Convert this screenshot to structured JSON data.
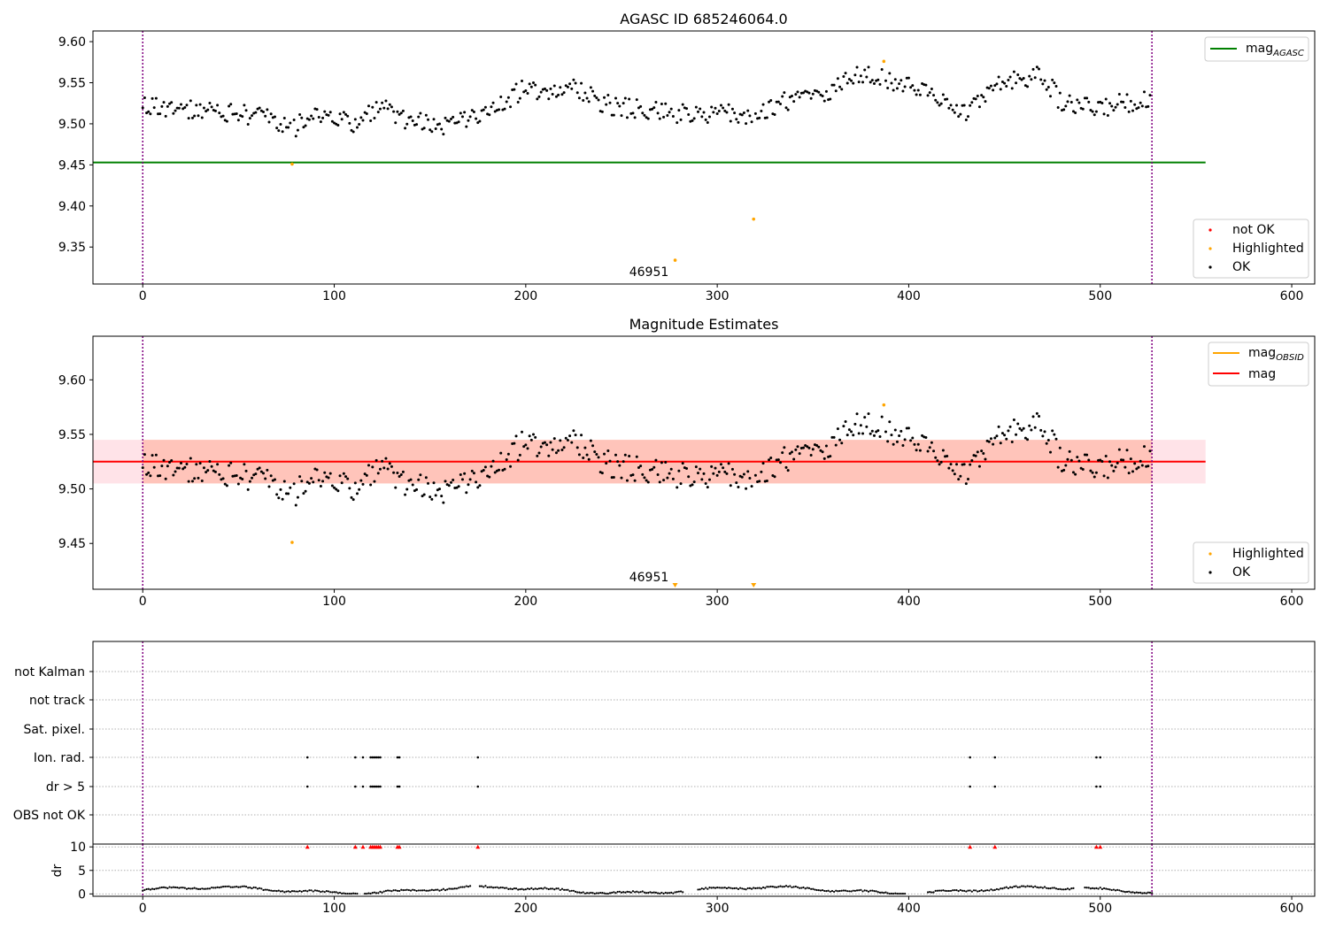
{
  "chart_data": [
    {
      "type": "scatter",
      "title": "AGASC ID 685246064.0",
      "xlabel": "",
      "ylabel": "",
      "xlim": [
        -26,
        612
      ],
      "ylim": [
        9.305,
        9.613
      ],
      "xticks": [
        0,
        100,
        200,
        300,
        400,
        500,
        600
      ],
      "xtick_labels": [
        "0",
        "100",
        "200",
        "300",
        "400",
        "500",
        "600"
      ],
      "yticks": [
        9.35,
        9.4,
        9.45,
        9.5,
        9.55,
        9.6
      ],
      "ytick_labels": [
        "9.35",
        "9.40",
        "9.45",
        "9.50",
        "9.55",
        "9.60"
      ],
      "vlines": [
        0,
        527
      ],
      "vline_color": "#800080",
      "hlines": [
        {
          "name": "mag_AGASC",
          "y": 9.453,
          "x_range": [
            -26,
            555
          ],
          "color": "#008000"
        }
      ],
      "annotations": [
        {
          "text": "46951",
          "x": 263,
          "y": 9.317
        }
      ],
      "highlighted": [
        {
          "x": 78,
          "y": 9.451
        },
        {
          "x": 278,
          "y": 9.334
        },
        {
          "x": 319,
          "y": 9.384
        },
        {
          "x": 387,
          "y": 9.576
        }
      ],
      "ok_series": {
        "name": "OK",
        "color": "#000000",
        "n_points": 527,
        "x_range": [
          0,
          527
        ],
        "approx_y_range": [
          9.478,
          9.575
        ]
      },
      "legends": [
        {
          "position": "upper-right",
          "entries": [
            {
              "label": "mag",
              "sub": "AGASC",
              "kind": "line",
              "color": "#008000"
            }
          ]
        },
        {
          "position": "lower-right",
          "entries": [
            {
              "label": "not OK",
              "kind": "dot",
              "color": "#ff0000"
            },
            {
              "label": "Highlighted",
              "kind": "dot",
              "color": "#ffa500"
            },
            {
              "label": "OK",
              "kind": "dot",
              "color": "#000000"
            }
          ]
        }
      ]
    },
    {
      "type": "scatter",
      "title": "Magnitude Estimates",
      "xlabel": "",
      "ylabel": "",
      "xlim": [
        -26,
        612
      ],
      "ylim": [
        9.408,
        9.64
      ],
      "xticks": [
        0,
        100,
        200,
        300,
        400,
        500,
        600
      ],
      "xtick_labels": [
        "0",
        "100",
        "200",
        "300",
        "400",
        "500",
        "600"
      ],
      "yticks": [
        9.45,
        9.5,
        9.55,
        9.6
      ],
      "ytick_labels": [
        "9.45",
        "9.50",
        "9.55",
        "9.60"
      ],
      "vlines": [
        0,
        527
      ],
      "hlines": [
        {
          "name": "mag",
          "y": 9.525,
          "x_range": [
            -26,
            555
          ],
          "color": "#ff0000"
        }
      ],
      "bands": [
        {
          "y_range": [
            9.505,
            9.545
          ],
          "x_range": [
            -26,
            555
          ],
          "color": "#ff7f50"
        }
      ],
      "annotations": [
        {
          "text": "46951",
          "x": 263,
          "y": 9.4125
        }
      ],
      "highlighted": [
        {
          "x": 78,
          "y": 9.451
        },
        {
          "x": 387,
          "y": 9.577
        }
      ],
      "offscale_markers": [
        {
          "x": 278
        },
        {
          "x": 319
        }
      ],
      "ok_series": {
        "name": "OK",
        "color": "#000000",
        "n_points": 527,
        "x_range": [
          0,
          527
        ]
      },
      "legends": [
        {
          "position": "upper-right",
          "entries": [
            {
              "label": "mag",
              "sub": "OBSID",
              "kind": "line",
              "color": "#ffa500"
            },
            {
              "label": "mag",
              "kind": "line",
              "color": "#ff0000"
            }
          ]
        },
        {
          "position": "lower-right",
          "entries": [
            {
              "label": "Highlighted",
              "kind": "dot",
              "color": "#ffa500"
            },
            {
              "label": "OK",
              "kind": "dot",
              "color": "#000000"
            }
          ]
        }
      ]
    },
    {
      "type": "scatter",
      "title": "",
      "xlim": [
        -26,
        612
      ],
      "categories": [
        "not Kalman",
        "not track",
        "Sat. pixel.",
        "Ion. rad.",
        "dr > 5",
        "OBS not OK"
      ],
      "flags": {
        "Ion. rad.": [
          86,
          111,
          115,
          119,
          120,
          121,
          122,
          123,
          124,
          133,
          134,
          175,
          432,
          445,
          498,
          500
        ],
        "dr > 5": [
          86,
          111,
          115,
          119,
          120,
          121,
          122,
          123,
          124,
          133,
          134,
          175,
          432,
          445,
          498,
          500
        ]
      },
      "vlines": [
        0,
        527
      ]
    },
    {
      "type": "scatter",
      "title": "",
      "ylabel": "dr",
      "xlim": [
        -26,
        612
      ],
      "ylim": [
        -0.5,
        10.6
      ],
      "xticks": [
        0,
        100,
        200,
        300,
        400,
        500,
        600
      ],
      "xtick_labels": [
        "0",
        "100",
        "200",
        "300",
        "400",
        "500",
        "600"
      ],
      "yticks": [
        0,
        5,
        10
      ],
      "ytick_labels": [
        "0",
        "5",
        "10"
      ],
      "clipped_markers_x": [
        86,
        111,
        115,
        119,
        120,
        121,
        122,
        123,
        124,
        133,
        134,
        175,
        432,
        445,
        498,
        500
      ],
      "clipped_marker_color": "#ff0000",
      "series_color": "#000000",
      "approx_y_range": [
        0.2,
        1.8
      ],
      "vlines": [
        0,
        527
      ]
    }
  ],
  "labels": {
    "panel1_title": "AGASC ID 685246064.0",
    "panel2_title": "Magnitude Estimates",
    "obsid_annotation": "46951",
    "dr_ylabel": "dr"
  }
}
